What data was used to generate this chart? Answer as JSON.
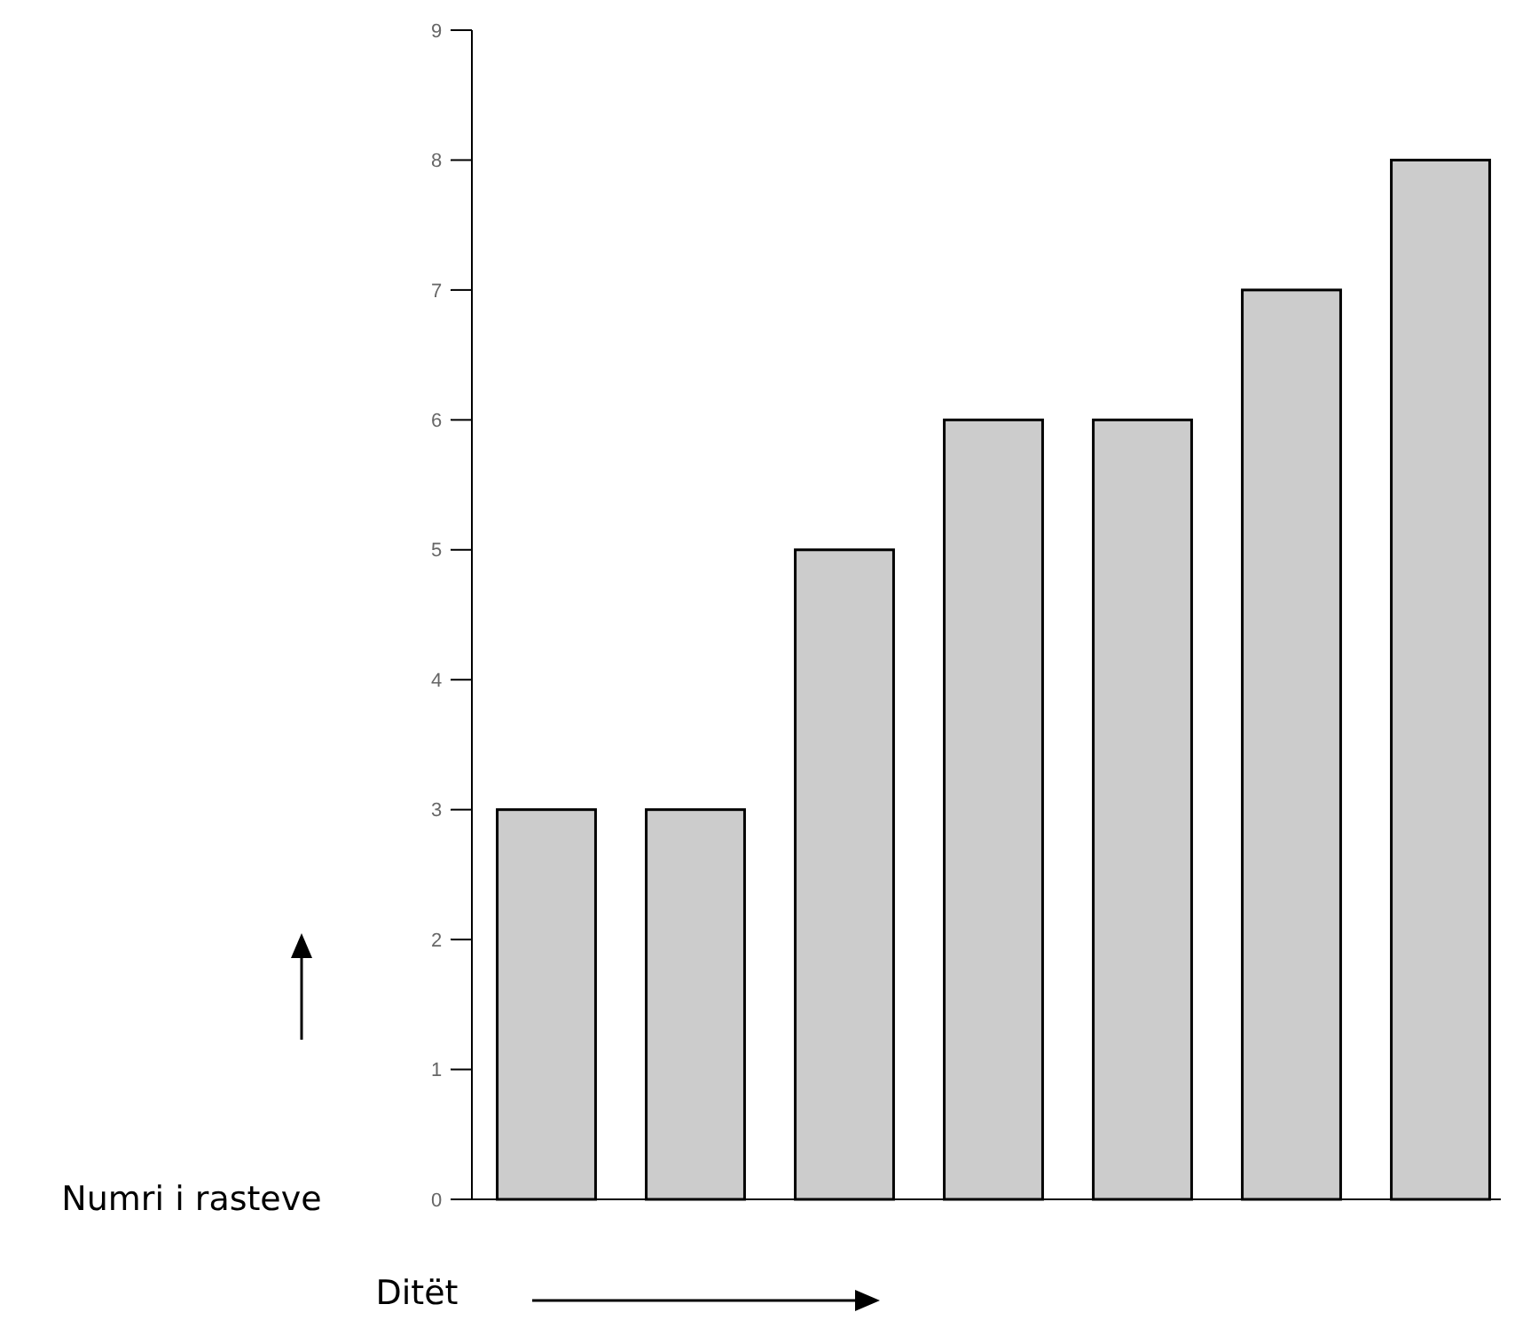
{
  "chart_data": {
    "type": "bar",
    "xlabel": "Ditët",
    "ylabel": "Numri i rasteve",
    "categories": [
      null,
      null,
      null,
      null,
      null,
      null,
      null
    ],
    "values": [
      3,
      3,
      5,
      6,
      6,
      7,
      8
    ],
    "color": "#cccccc",
    "ylim": [
      0,
      9
    ],
    "yticks": [
      0,
      1,
      2,
      3,
      4,
      5,
      6,
      7,
      8,
      9
    ],
    "grid": false
  }
}
